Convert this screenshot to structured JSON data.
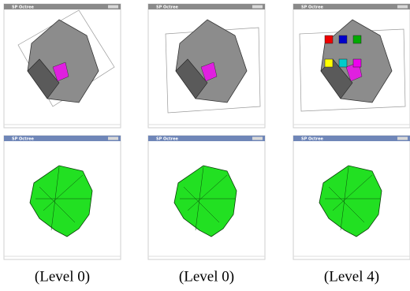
{
  "windows": [
    {
      "title": "SP Octree"
    },
    {
      "title": "SP Octree"
    },
    {
      "title": "SP Octree"
    },
    {
      "title": "SP Octree"
    },
    {
      "title": "SP Octree"
    },
    {
      "title": "SP Octree"
    }
  ],
  "captions": [
    "(Level 0)",
    "(Level 0)",
    "(Level 4)"
  ]
}
